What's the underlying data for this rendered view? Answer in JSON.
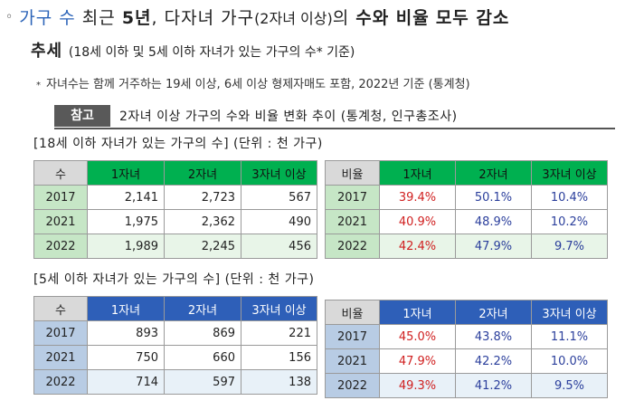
{
  "headline": {
    "bullet": "◦",
    "part1": "가구 수",
    "part2": "최근",
    "part3": "5년",
    "part4": ",",
    "part5": "다자녀 가구",
    "part6": "(2자녀 이상)",
    "part7": "의",
    "part8": "수와 비율",
    "part9": "모두 감소",
    "line2_bold": "추세",
    "line2_small": "(18세 이하 및 5세 이하 자녀가 있는 가구의 수* 기준)"
  },
  "note": {
    "star": "*",
    "text": "자녀수는 함께 거주하는 19세 이상, 6세 이상 형제자매도 포함, 2022년 기준 (통계청)"
  },
  "reference": {
    "tag": "참고",
    "title": "2자녀 이상 가구의 수와 비율 변화 추이 (통계청, 인구총조사)"
  },
  "sections": [
    {
      "title": "[18세 이하 자녀가 있는 가구의 수] (단위 : 천 가구)",
      "count_table": {
        "headers": [
          "수",
          "1자녀",
          "2자녀",
          "3자녀 이상"
        ],
        "rows": [
          {
            "year": "2017",
            "values": [
              "2,141",
              "2,723",
              "567"
            ]
          },
          {
            "year": "2021",
            "values": [
              "1,975",
              "2,362",
              "490"
            ]
          },
          {
            "year": "2022",
            "values": [
              "1,989",
              "2,245",
              "456"
            ]
          }
        ]
      },
      "ratio_table": {
        "headers": [
          "비율",
          "1자녀",
          "2자녀",
          "3자녀 이상"
        ],
        "rows": [
          {
            "year": "2017",
            "values": [
              "39.4%",
              "50.1%",
              "10.4%"
            ]
          },
          {
            "year": "2021",
            "values": [
              "40.9%",
              "48.9%",
              "10.2%"
            ]
          },
          {
            "year": "2022",
            "values": [
              "42.4%",
              "47.9%",
              "9.7%"
            ]
          }
        ]
      }
    },
    {
      "title": "[5세 이하 자녀가 있는 가구의 수] (단위 : 천 가구)",
      "count_table": {
        "headers": [
          "수",
          "1자녀",
          "2자녀",
          "3자녀 이상"
        ],
        "rows": [
          {
            "year": "2017",
            "values": [
              "893",
              "869",
              "221"
            ]
          },
          {
            "year": "2021",
            "values": [
              "750",
              "660",
              "156"
            ]
          },
          {
            "year": "2022",
            "values": [
              "714",
              "597",
              "138"
            ]
          }
        ]
      },
      "ratio_table": {
        "headers": [
          "비율",
          "1자녀",
          "2자녀",
          "3자녀 이상"
        ],
        "rows": [
          {
            "year": "2017",
            "values": [
              "45.0%",
              "43.8%",
              "11.1%"
            ]
          },
          {
            "year": "2021",
            "values": [
              "47.9%",
              "42.2%",
              "10.0%"
            ]
          },
          {
            "year": "2022",
            "values": [
              "49.3%",
              "41.2%",
              "9.5%"
            ]
          }
        ]
      }
    }
  ],
  "colors": {
    "green_header": "#00b050",
    "green_year": "#c6e6c6",
    "green_corner": "#d9d9d9",
    "blue_header": "#2e5fb8",
    "blue_year": "#b8cce4",
    "blue_last_row": "#e8f1f8",
    "green_last_row": "#e8f5e8",
    "red_text": "#d02020",
    "blue_text": "#2b3f9c"
  }
}
